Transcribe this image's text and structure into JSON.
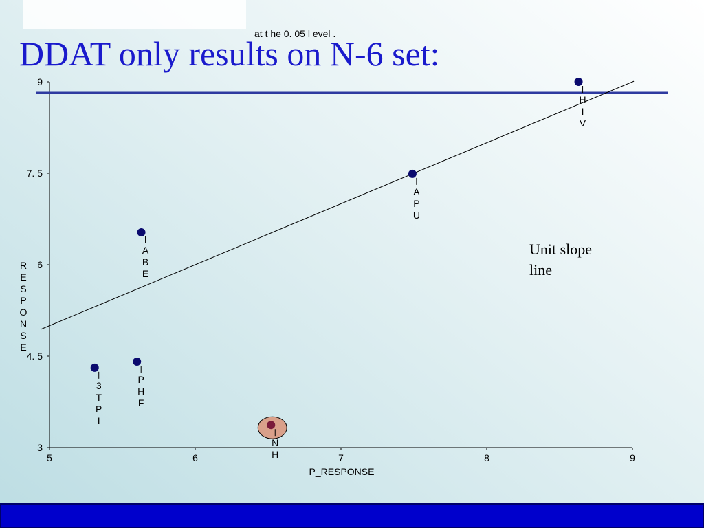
{
  "chart_data": {
    "type": "scatter",
    "title": "DDAT only results on N-6 set:",
    "note": "at  t he  0. 05  l evel .",
    "xlabel": "P_RESPONSE",
    "ylabel": "RESPONSE",
    "x": [
      8.63,
      7.49,
      5.63,
      5.31,
      5.6,
      6.52
    ],
    "values": [
      9.0,
      7.49,
      6.53,
      4.31,
      4.41,
      3.37
    ],
    "point_labels": [
      "HIV",
      "APU",
      "ABE",
      "3TPI",
      "PHF",
      "NH"
    ],
    "color": "#0a0a6e",
    "highlighted_point": 5,
    "highlight_color": "#d9a08a",
    "xlim": [
      5,
      9
    ],
    "ylim": [
      3,
      9
    ],
    "xticks": [
      5,
      6,
      7,
      8,
      9
    ],
    "yticks": [
      3,
      {
        "value": 4.5,
        "label": "4. 5"
      },
      6,
      {
        "value": 7.5,
        "label": "7. 5"
      },
      9
    ],
    "reference_line": {
      "label": "Unit slope line",
      "x": [
        4.94,
        9.01
      ],
      "y": [
        4.94,
        9.01
      ]
    },
    "hline": {
      "value": 8.82,
      "color": "#2e3aa0"
    }
  }
}
